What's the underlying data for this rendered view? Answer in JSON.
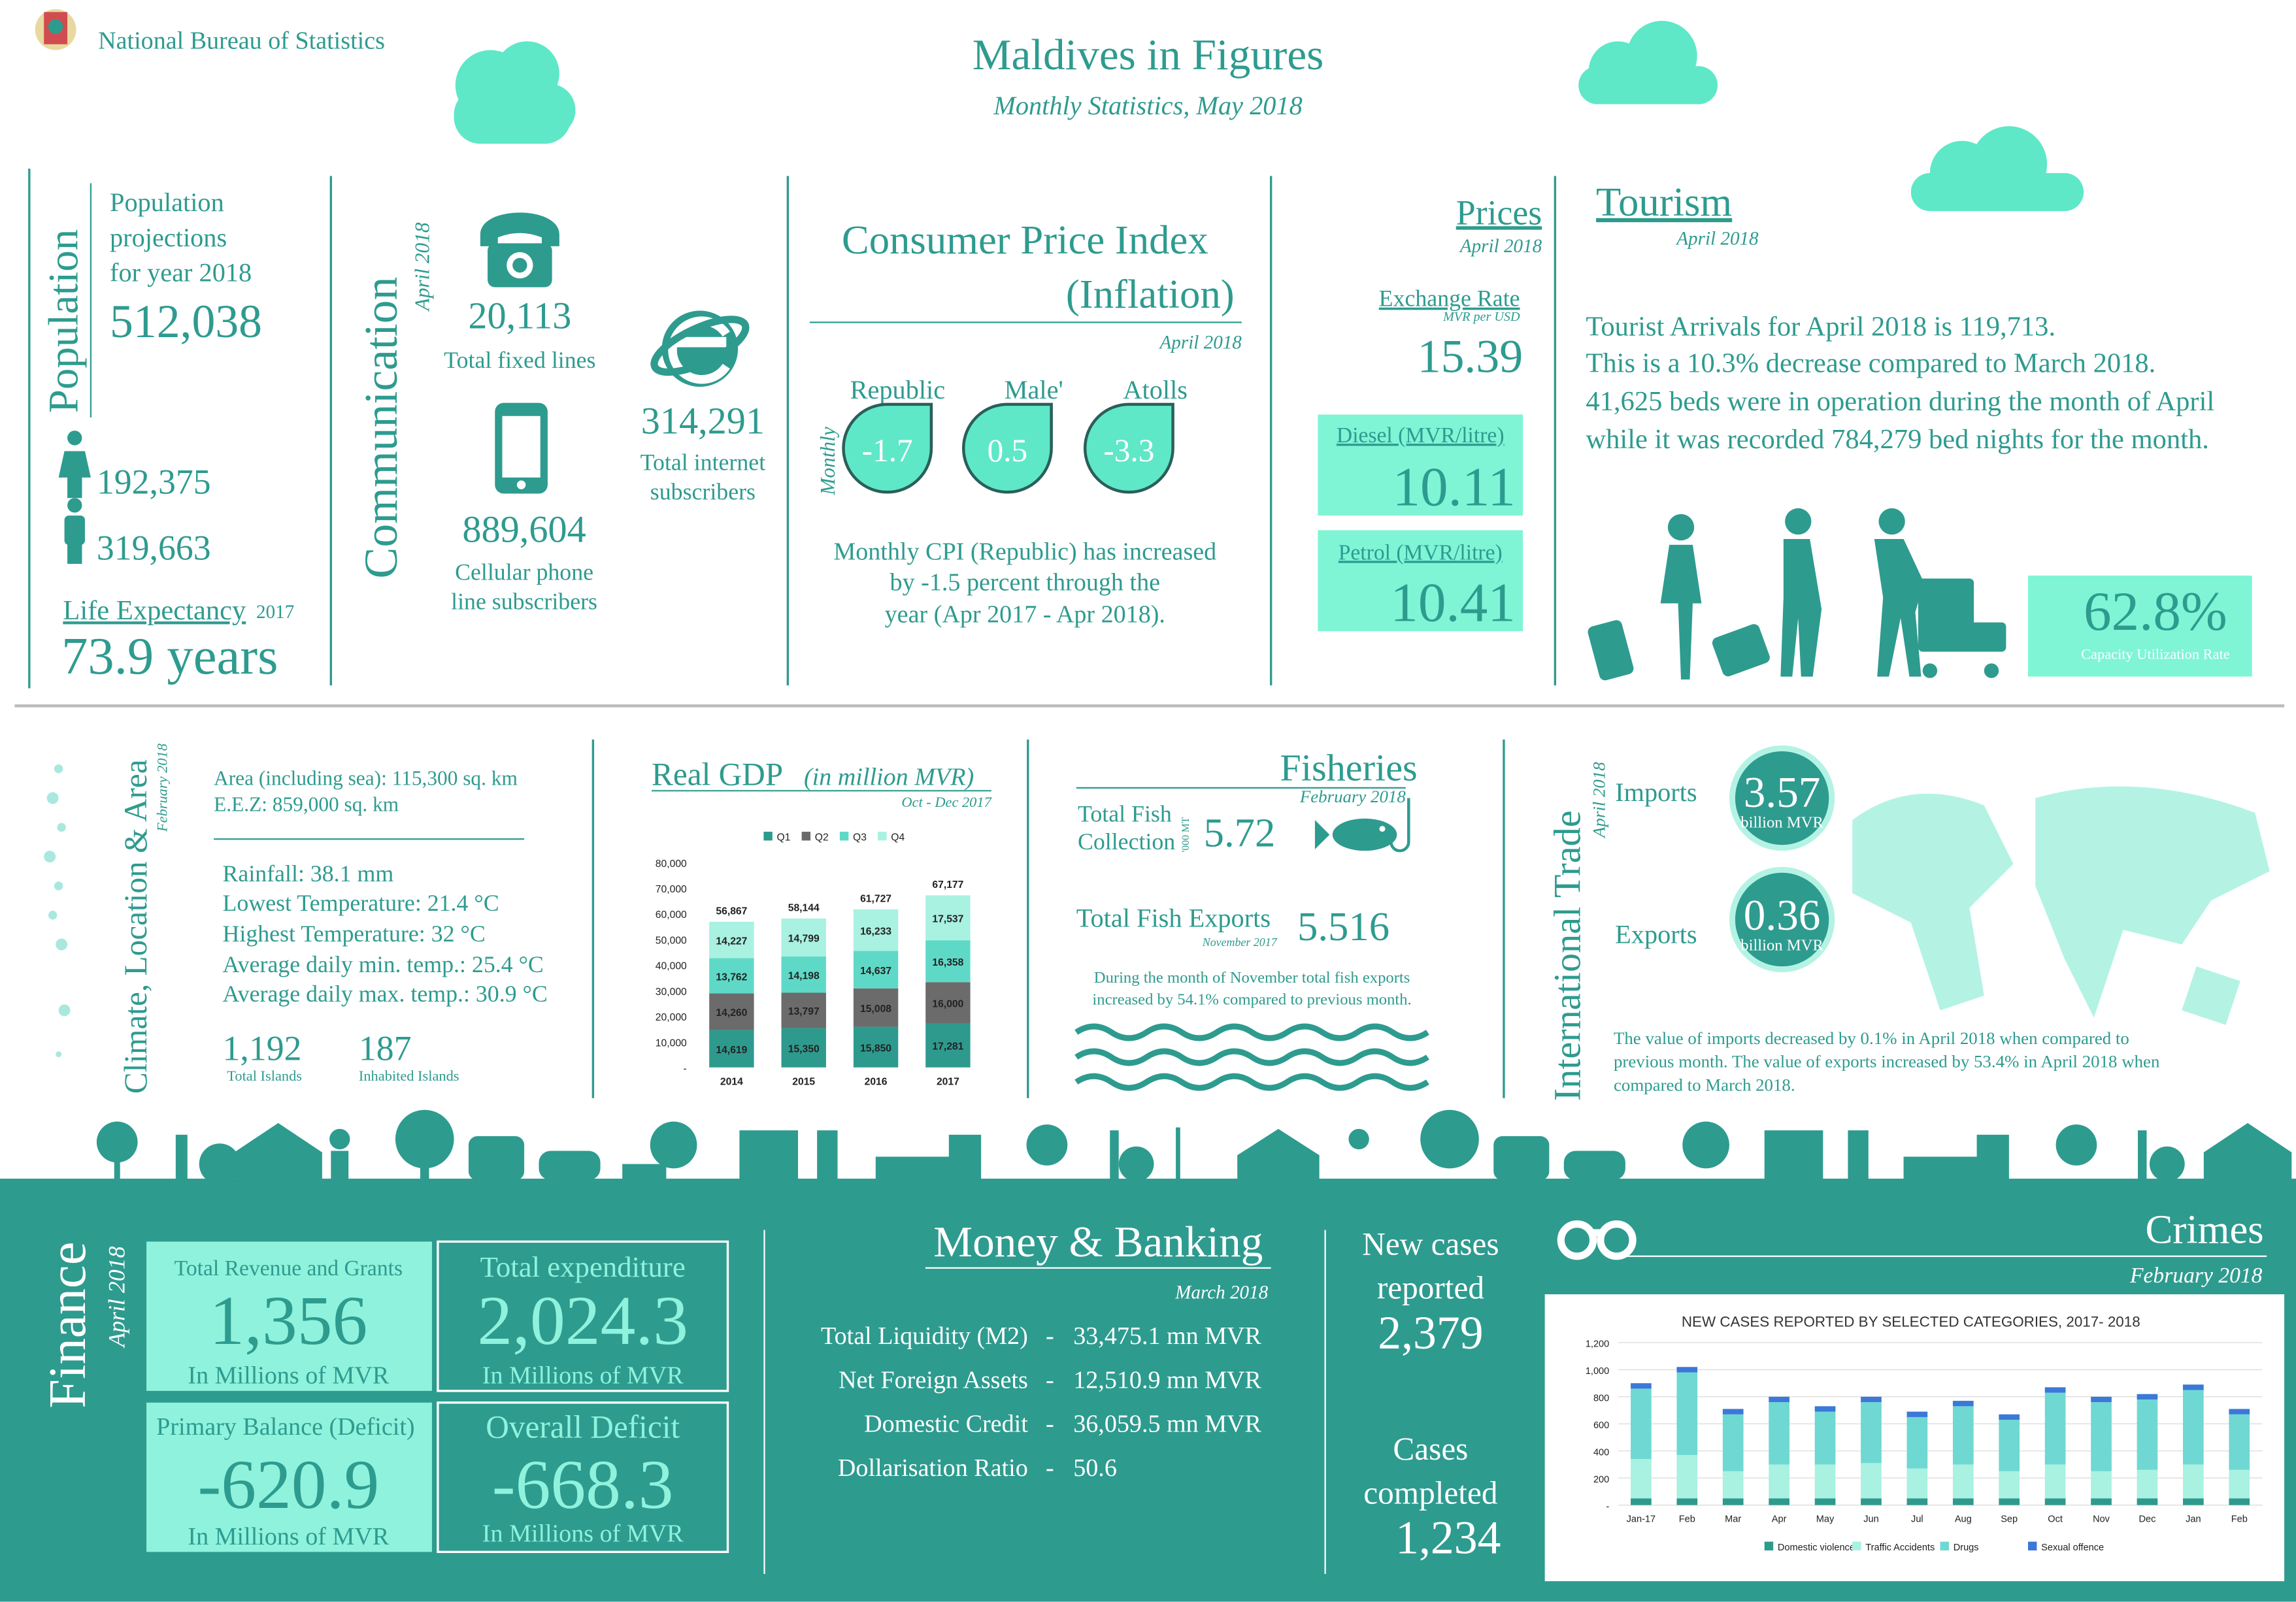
{
  "header": {
    "organization": "National Bureau of Statistics",
    "title": "Maldives in Figures",
    "subtitle": "Monthly Statistics, May 2018"
  },
  "population": {
    "heading": "Population",
    "label": [
      "Population",
      "projections",
      "for year 2018"
    ],
    "total": "512,038",
    "female": "192,375",
    "male": "319,663",
    "life_expectancy_label": "Life Expectancy",
    "life_expectancy_year": "2017",
    "life_expectancy": "73.9 years"
  },
  "communication": {
    "heading": "Communication",
    "date": "April 2018",
    "fixed_lines": "20,113",
    "fixed_lines_label": "Total fixed lines",
    "cellular": "889,604",
    "cellular_label": [
      "Cellular phone",
      "line subscribers"
    ],
    "internet": "314,291",
    "internet_label": [
      "Total internet",
      "subscribers"
    ]
  },
  "cpi": {
    "heading": [
      "Consumer Price Index",
      "(Inflation)"
    ],
    "date": "April 2018",
    "monthly_label": "Monthly",
    "regions": [
      {
        "name": "Republic",
        "value": "-1.7"
      },
      {
        "name": "Male'",
        "value": "0.5"
      },
      {
        "name": "Atolls",
        "value": "-3.3"
      }
    ],
    "note": [
      "Monthly CPI (Republic) has increased",
      "by -1.5 percent through the",
      "year (Apr 2017 - Apr 2018)."
    ]
  },
  "prices": {
    "heading": "Prices",
    "date": "April 2018",
    "exchange_label": "Exchange Rate",
    "exchange_unit": "MVR per USD",
    "exchange": "15.39",
    "diesel_label": "Diesel (MVR/litre)",
    "diesel": "10.11",
    "petrol_label": "Petrol (MVR/litre)",
    "petrol": "10.41"
  },
  "tourism": {
    "heading": "Tourism",
    "date": "April 2018",
    "text": [
      "Tourist Arrivals for April 2018 is 119,713.",
      "This is a 10.3% decrease compared to March 2018.",
      "41,625 beds were in operation during the month of April",
      "while it was recorded 784,279 bed nights for the month."
    ],
    "capacity": "62.8%",
    "capacity_label": "Capacity Utilization Rate"
  },
  "climate": {
    "heading": "Climate, Location & Area",
    "date": "February 2018",
    "area": [
      "Area (including sea): 115,300 sq. km",
      "E.E.Z: 859,000 sq. km"
    ],
    "weather": [
      "Rainfall: 38.1 mm",
      "Lowest Temperature: 21.4 °C",
      "Highest Temperature: 32 °C",
      "Average daily min. temp.: 25.4 °C",
      "Average daily max. temp.: 30.9 °C"
    ],
    "islands": "1,192",
    "islands_label": "Total Islands",
    "inhabited": "187",
    "inhabited_label": "Inhabited Islands"
  },
  "gdp": {
    "type": "bar",
    "stacked": true,
    "title": "Real GDP",
    "title_note": "(in million MVR)",
    "subtitle": "Oct - Dec 2017",
    "categories": [
      "2014",
      "2015",
      "2016",
      "2017"
    ],
    "series": [
      {
        "name": "Q1",
        "color": "#2e9a8e",
        "values": [
          14619,
          15350,
          15850,
          17281
        ],
        "value_labels": [
          "14,619",
          "15,350",
          "15,850",
          "17,281"
        ]
      },
      {
        "name": "Q2",
        "color": "#6b6b6b",
        "values": [
          14260,
          13797,
          15008,
          16000
        ],
        "value_labels": [
          "14,260",
          "13,797",
          "15,008",
          "16,000"
        ]
      },
      {
        "name": "Q3",
        "color": "#5fd9c7",
        "values": [
          13762,
          14198,
          14637,
          16358
        ],
        "value_labels": [
          "13,762",
          "14,198",
          "14,637",
          "16,358"
        ]
      },
      {
        "name": "Q4",
        "color": "#a9f1e1",
        "values": [
          14227,
          14799,
          16233,
          17537
        ],
        "value_labels": [
          "14,227",
          "14,799",
          "16,233",
          "17,537"
        ]
      }
    ],
    "total_labels": [
      "56,867",
      "58,144",
      "61,727",
      "67,177"
    ],
    "ylim": [
      0,
      80000
    ],
    "yticks": [
      {
        "value": 0,
        "label": "-"
      },
      {
        "value": 10000,
        "label": "10,000"
      },
      {
        "value": 20000,
        "label": "20,000"
      },
      {
        "value": 30000,
        "label": "30,000"
      },
      {
        "value": 40000,
        "label": "40,000"
      },
      {
        "value": 50000,
        "label": "50,000"
      },
      {
        "value": 60000,
        "label": "60,000"
      },
      {
        "value": 70000,
        "label": "70,000"
      },
      {
        "value": 80000,
        "label": "80,000"
      }
    ],
    "grid": false,
    "legend": "top"
  },
  "fisheries": {
    "heading": "Fisheries",
    "date": "February 2018",
    "collection_label": [
      "Total Fish",
      "Collection"
    ],
    "collection_unit": "'000 MT",
    "collection": "5.72",
    "exports_label": "Total Fish Exports",
    "exports_date": "November 2017",
    "exports": "5.516",
    "note": [
      "During the month of November total fish exports",
      "increased by 54.1% compared to previous month."
    ]
  },
  "trade": {
    "heading": "International Trade",
    "date": "April 2018",
    "imports_label": "Imports",
    "imports": "3.57",
    "imports_unit": "billion MVR",
    "exports_label": "Exports",
    "exports": "0.36",
    "exports_unit": "billion MVR",
    "note": [
      "The value of imports decreased by 0.1% in April 2018 when compared to",
      "previous month. The value of exports increased by 53.4% in April 2018 when",
      "compared to March 2018."
    ]
  },
  "finance": {
    "heading": "Finance",
    "date": "April 2018",
    "boxes": [
      {
        "label": "Total Revenue and Grants",
        "value": "1,356",
        "unit": "In Millions of MVR"
      },
      {
        "label": "Total  expenditure",
        "value": "2,024.3",
        "unit": "In Millions of MVR"
      },
      {
        "label": "Primary Balance (Deficit)",
        "value": "-620.9",
        "unit": "In Millions of MVR"
      },
      {
        "label": "Overall Deficit",
        "value": "-668.3",
        "unit": "In Millions of MVR"
      }
    ]
  },
  "banking": {
    "heading": "Money & Banking",
    "date": "March 2018",
    "rows": [
      [
        "Total Liquidity (M2)",
        "-",
        "33,475.1 mn MVR"
      ],
      [
        "Net Foreign Assets",
        "-",
        "12,510.9 mn MVR"
      ],
      [
        "Domestic Credit",
        "-",
        "36,059.5 mn MVR"
      ],
      [
        "Dollarisation Ratio",
        "-",
        "50.6"
      ]
    ]
  },
  "crime": {
    "heading": "Crimes",
    "date": "February 2018",
    "new_label": [
      "New cases",
      "reported"
    ],
    "new": "2,379",
    "completed_label": [
      "Cases",
      "completed"
    ],
    "completed": "1,234",
    "chart": {
      "type": "bar",
      "stacked": true,
      "title": "NEW CASES REPORTED BY SELECTED CATEGORIES, 2017- 2018",
      "categories": [
        "Jan-17",
        "Feb",
        "Mar",
        "Apr",
        "May",
        "Jun",
        "Jul",
        "Aug",
        "Sep",
        "Oct",
        "Nov",
        "Dec",
        "Jan",
        "Feb"
      ],
      "series": [
        {
          "name": "Domestic violence",
          "color": "#2e9a8e",
          "values": [
            50,
            50,
            50,
            50,
            50,
            50,
            50,
            50,
            50,
            50,
            50,
            50,
            50,
            50
          ]
        },
        {
          "name": "Traffic Accidents",
          "color": "#a9f1e1",
          "values": [
            290,
            320,
            200,
            250,
            250,
            260,
            220,
            250,
            200,
            250,
            200,
            210,
            250,
            210
          ]
        },
        {
          "name": "Drugs",
          "color": "#6fd8d2",
          "values": [
            520,
            610,
            420,
            460,
            390,
            450,
            380,
            430,
            380,
            530,
            510,
            520,
            550,
            410
          ]
        },
        {
          "name": "Sexual offence",
          "color": "#3b78d8",
          "values": [
            40,
            40,
            40,
            40,
            40,
            40,
            40,
            40,
            40,
            40,
            40,
            40,
            40,
            40
          ]
        }
      ],
      "ylim": [
        0,
        1200
      ],
      "yticks": [
        {
          "value": 0,
          "label": "-"
        },
        200,
        400,
        600,
        800,
        {
          "value": 1000,
          "label": "1,000"
        },
        {
          "value": 1200,
          "label": "1,200"
        }
      ],
      "grid": true,
      "legend": "bottom"
    }
  }
}
